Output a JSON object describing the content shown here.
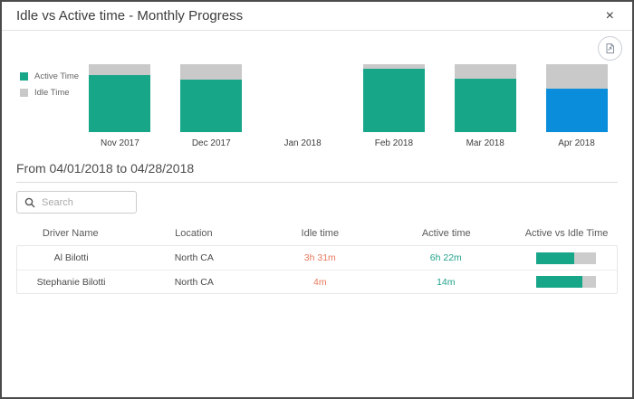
{
  "modal": {
    "title": "Idle vs Active time - Monthly Progress",
    "close_glyph": "×"
  },
  "toolbar": {
    "export_icon": "export-report-icon"
  },
  "colors": {
    "active": "#18a689",
    "idle": "#c9c9c9",
    "selected_active": "#0a8edb",
    "idle_text": "#e8795c",
    "active_text": "#21a189",
    "ratio_track": "#cccccc"
  },
  "chart_data": {
    "type": "bar",
    "stacked": true,
    "unit": "percent",
    "title": "",
    "xlabel": "",
    "ylabel": "",
    "ylim": [
      0,
      100
    ],
    "grid": false,
    "legend_position": "left",
    "categories": [
      "Nov 2017",
      "Dec 2017",
      "Jan 2018",
      "Feb 2018",
      "Mar 2018",
      "Apr 2018"
    ],
    "series": [
      {
        "name": "Active Time",
        "values": [
          84,
          78,
          0,
          93,
          79,
          64
        ]
      },
      {
        "name": "Idle Time",
        "values": [
          16,
          22,
          0,
          7,
          21,
          36
        ]
      }
    ],
    "selected_category": "Apr 2018"
  },
  "period": {
    "label": "From 04/01/2018 to 04/28/2018"
  },
  "search": {
    "placeholder": "Search"
  },
  "table": {
    "columns": [
      "Driver Name",
      "Location",
      "Idle time",
      "Active time",
      "Active vs Idle Time"
    ],
    "rows": [
      {
        "driver": "Al Bilotti",
        "location": "North CA",
        "idle": "3h 31m",
        "active": "6h 22m",
        "active_pct": 64
      },
      {
        "driver": "Stephanie Bilotti",
        "location": "North CA",
        "idle": "4m",
        "active": "14m",
        "active_pct": 78
      }
    ]
  }
}
